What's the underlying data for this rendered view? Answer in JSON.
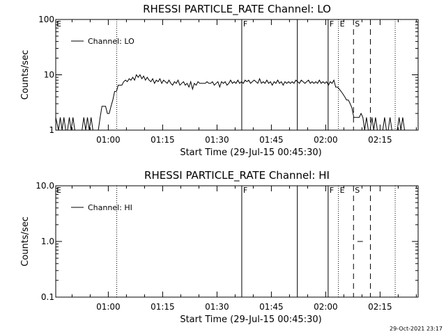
{
  "figure": {
    "timestamp": "29-Oct-2021 23:17"
  },
  "chart_data": [
    {
      "type": "line",
      "title": "RHESSI PARTICLE_RATE Channel: LO",
      "xlabel": "Start Time (29-Jul-15 00:45:30)",
      "ylabel": "Counts/sec",
      "x_unit": "minutes",
      "xlim": [
        "00:45:30",
        "02:25:30"
      ],
      "y_scale": "log",
      "ylim": [
        1,
        100
      ],
      "y_ticks": [
        {
          "value": 1,
          "label": "1"
        },
        {
          "value": 10,
          "label": "10"
        },
        {
          "value": 100,
          "label": "100"
        }
      ],
      "x_ticks": [
        {
          "time": "01:00",
          "label": "01:00"
        },
        {
          "time": "01:15",
          "label": "01:15"
        },
        {
          "time": "01:30",
          "label": "01:30"
        },
        {
          "time": "01:45",
          "label": "01:45"
        },
        {
          "time": "02:00",
          "label": "02:00"
        },
        {
          "time": "02:15",
          "label": "02:15"
        }
      ],
      "grid": false,
      "legend": {
        "position": "top-left",
        "entries": [
          "Channel: LO"
        ]
      },
      "series": [
        {
          "name": "Channel: LO",
          "points": [
            [
              "00:45:30",
              1.7
            ],
            [
              "00:46:15",
              1
            ],
            [
              "00:46:45",
              1.7
            ],
            [
              "00:47:15",
              1
            ],
            [
              "00:47:45",
              1.7
            ],
            [
              "00:48:15",
              1
            ],
            [
              "00:48:45",
              1
            ],
            [
              "00:49:15",
              1.7
            ],
            [
              "00:49:45",
              1
            ],
            [
              "00:50:15",
              1.7
            ],
            [
              "00:50:45",
              1
            ],
            [
              "00:51:15",
              1
            ],
            [
              "00:51:45",
              1
            ],
            [
              "00:52:15",
              1
            ],
            [
              "00:52:45",
              1
            ],
            [
              "00:53:15",
              1.7
            ],
            [
              "00:53:45",
              1
            ],
            [
              "00:54:15",
              1.7
            ],
            [
              "00:54:45",
              1
            ],
            [
              "00:55:15",
              1.7
            ],
            [
              "00:55:45",
              1
            ],
            [
              "00:56:15",
              1
            ],
            [
              "00:56:45",
              1
            ],
            [
              "00:57:15",
              1
            ],
            [
              "00:57:45",
              1.7
            ],
            [
              "00:58:15",
              2.7
            ],
            [
              "00:58:45",
              2.7
            ],
            [
              "00:59:15",
              2.7
            ],
            [
              "00:59:45",
              2
            ],
            [
              "01:00:15",
              2
            ],
            [
              "01:00:45",
              2.7
            ],
            [
              "01:01:15",
              3.5
            ],
            [
              "01:01:45",
              5
            ],
            [
              "01:02:15",
              5
            ],
            [
              "01:02:45",
              6.5
            ],
            [
              "01:03:15",
              6.5
            ],
            [
              "01:03:45",
              6.5
            ],
            [
              "01:04:15",
              7.5
            ],
            [
              "01:04:45",
              8
            ],
            [
              "01:05:15",
              7.5
            ],
            [
              "01:05:45",
              8.5
            ],
            [
              "01:06:15",
              8
            ],
            [
              "01:06:45",
              9
            ],
            [
              "01:07:15",
              8
            ],
            [
              "01:07:45",
              10
            ],
            [
              "01:08:15",
              9
            ],
            [
              "01:08:45",
              10
            ],
            [
              "01:09:15",
              8.5
            ],
            [
              "01:09:45",
              9.5
            ],
            [
              "01:10:15",
              8
            ],
            [
              "01:10:45",
              9
            ],
            [
              "01:11:15",
              8
            ],
            [
              "01:11:45",
              7.5
            ],
            [
              "01:12:15",
              8.5
            ],
            [
              "01:12:45",
              7
            ],
            [
              "01:13:15",
              8
            ],
            [
              "01:13:45",
              7.5
            ],
            [
              "01:14:15",
              8.5
            ],
            [
              "01:14:45",
              7
            ],
            [
              "01:15:15",
              8
            ],
            [
              "01:15:45",
              7.5
            ],
            [
              "01:16:15",
              7
            ],
            [
              "01:16:45",
              8
            ],
            [
              "01:17:15",
              7
            ],
            [
              "01:17:45",
              6.5
            ],
            [
              "01:18:15",
              7.5
            ],
            [
              "01:18:45",
              7
            ],
            [
              "01:19:15",
              8
            ],
            [
              "01:19:45",
              6.5
            ],
            [
              "01:20:15",
              7
            ],
            [
              "01:20:45",
              7.5
            ],
            [
              "01:21:15",
              6.5
            ],
            [
              "01:21:45",
              7
            ],
            [
              "01:22:15",
              6
            ],
            [
              "01:22:45",
              7.5
            ],
            [
              "01:23:15",
              5.5
            ],
            [
              "01:23:45",
              7
            ],
            [
              "01:24:15",
              6.5
            ],
            [
              "01:24:45",
              7.5
            ],
            [
              "01:25:15",
              7
            ],
            [
              "01:25:45",
              7
            ],
            [
              "01:26:15",
              7
            ],
            [
              "01:26:45",
              7
            ],
            [
              "01:27:15",
              7.5
            ],
            [
              "01:27:45",
              7
            ],
            [
              "01:28:15",
              7
            ],
            [
              "01:28:45",
              7.5
            ],
            [
              "01:29:15",
              6.5
            ],
            [
              "01:29:45",
              7
            ],
            [
              "01:30:15",
              7.5
            ],
            [
              "01:30:45",
              6
            ],
            [
              "01:31:15",
              7.5
            ],
            [
              "01:31:45",
              7
            ],
            [
              "01:32:15",
              7.5
            ],
            [
              "01:32:45",
              6.5
            ],
            [
              "01:33:15",
              7
            ],
            [
              "01:33:45",
              8
            ],
            [
              "01:34:15",
              7
            ],
            [
              "01:34:45",
              7.5
            ],
            [
              "01:35:15",
              7
            ],
            [
              "01:35:45",
              8
            ],
            [
              "01:36:15",
              7
            ],
            [
              "01:36:45",
              7.5
            ],
            [
              "01:37:15",
              7
            ],
            [
              "01:37:45",
              8
            ],
            [
              "01:38:15",
              7.5
            ],
            [
              "01:38:45",
              8
            ],
            [
              "01:39:15",
              7
            ],
            [
              "01:39:45",
              7.5
            ],
            [
              "01:40:15",
              8
            ],
            [
              "01:40:45",
              7.5
            ],
            [
              "01:41:15",
              7
            ],
            [
              "01:41:45",
              8.5
            ],
            [
              "01:42:15",
              7
            ],
            [
              "01:42:45",
              7.5
            ],
            [
              "01:43:15",
              7
            ],
            [
              "01:43:45",
              8
            ],
            [
              "01:44:15",
              7
            ],
            [
              "01:44:45",
              7.5
            ],
            [
              "01:45:15",
              6.5
            ],
            [
              "01:45:45",
              7.5
            ],
            [
              "01:46:15",
              7
            ],
            [
              "01:46:45",
              8
            ],
            [
              "01:47:15",
              7
            ],
            [
              "01:47:45",
              7.5
            ],
            [
              "01:48:15",
              6.5
            ],
            [
              "01:48:45",
              7.5
            ],
            [
              "01:49:15",
              7
            ],
            [
              "01:49:45",
              7.5
            ],
            [
              "01:50:15",
              7
            ],
            [
              "01:50:45",
              7.5
            ],
            [
              "01:51:15",
              7
            ],
            [
              "01:51:45",
              8
            ],
            [
              "01:52:15",
              7.5
            ],
            [
              "01:52:45",
              7
            ],
            [
              "01:53:15",
              8
            ],
            [
              "01:53:45",
              7.5
            ],
            [
              "01:54:15",
              7
            ],
            [
              "01:54:45",
              7.5
            ],
            [
              "01:55:15",
              8
            ],
            [
              "01:55:45",
              7
            ],
            [
              "01:56:15",
              7.5
            ],
            [
              "01:56:45",
              7
            ],
            [
              "01:57:15",
              7.5
            ],
            [
              "01:57:45",
              7
            ],
            [
              "01:58:15",
              8
            ],
            [
              "01:58:45",
              7
            ],
            [
              "01:59:15",
              7.5
            ],
            [
              "01:59:45",
              7
            ],
            [
              "02:00:15",
              7.5
            ],
            [
              "02:00:45",
              6.5
            ],
            [
              "02:01:15",
              7.5
            ],
            [
              "02:01:45",
              7
            ],
            [
              "02:02:15",
              8
            ],
            [
              "02:02:45",
              6
            ],
            [
              "02:03:15",
              6
            ],
            [
              "02:03:45",
              5.5
            ],
            [
              "02:04:15",
              5
            ],
            [
              "02:04:45",
              4.5
            ],
            [
              "02:05:15",
              4
            ],
            [
              "02:05:45",
              3.5
            ],
            [
              "02:06:15",
              3.5
            ],
            [
              "02:06:45",
              3
            ],
            [
              "02:07:15",
              2.5
            ],
            [
              "02:07:45",
              1.7
            ],
            [
              "02:08:15",
              1.7
            ],
            [
              "02:08:45",
              1.7
            ],
            [
              "02:09:15",
              1.7
            ],
            [
              "02:09:45",
              2
            ],
            [
              "02:10:15",
              1.7
            ],
            [
              "02:10:45",
              1
            ],
            [
              "02:11:15",
              1.7
            ],
            [
              "02:11:45",
              1
            ],
            [
              "02:12:15",
              1
            ],
            [
              "02:12:45",
              1.7
            ],
            [
              "02:13:15",
              1
            ],
            [
              "02:13:45",
              1.7
            ],
            [
              "02:14:15",
              1
            ],
            [
              "02:14:45",
              1
            ],
            [
              "02:15:15",
              1
            ],
            [
              "02:15:45",
              1
            ],
            [
              "02:16:15",
              1.7
            ],
            [
              "02:16:45",
              1
            ],
            [
              "02:17:15",
              1
            ],
            [
              "02:17:45",
              1.7
            ],
            [
              "02:18:15",
              1
            ],
            [
              "02:18:45",
              1
            ],
            [
              "02:19:15",
              1
            ],
            [
              "02:19:45",
              1
            ],
            [
              "02:20:15",
              1.7
            ],
            [
              "02:20:45",
              1
            ],
            [
              "02:21:15",
              1.7
            ],
            [
              "02:21:45",
              1
            ]
          ]
        }
      ],
      "event_lines": [
        {
          "time": "01:02:20",
          "style": "dotted",
          "label": ""
        },
        {
          "time": "01:36:50",
          "style": "solid",
          "label": "F"
        },
        {
          "time": "01:52:10",
          "style": "solid",
          "label": ""
        },
        {
          "time": "02:00:40",
          "style": "solid",
          "label": "F"
        },
        {
          "time": "02:03:30",
          "style": "dotted",
          "label": "E"
        },
        {
          "time": "02:07:40",
          "style": "dashed",
          "label": "S"
        },
        {
          "time": "02:12:20",
          "style": "dashed",
          "label": ""
        },
        {
          "time": "02:19:10",
          "style": "dotted",
          "label": ""
        }
      ],
      "corner_label": "E"
    },
    {
      "type": "line",
      "title": "RHESSI PARTICLE_RATE Channel: HI",
      "xlabel": "Start Time (29-Jul-15 00:45:30)",
      "ylabel": "Counts/sec",
      "x_unit": "minutes",
      "xlim": [
        "00:45:30",
        "02:25:30"
      ],
      "y_scale": "log",
      "ylim": [
        0.1,
        10
      ],
      "y_ticks": [
        {
          "value": 0.1,
          "label": "0.1"
        },
        {
          "value": 1,
          "label": "1.0"
        },
        {
          "value": 10,
          "label": "10.0"
        }
      ],
      "x_ticks": [
        {
          "time": "01:00",
          "label": "01:00"
        },
        {
          "time": "01:15",
          "label": "01:15"
        },
        {
          "time": "01:30",
          "label": "01:30"
        },
        {
          "time": "01:45",
          "label": "01:45"
        },
        {
          "time": "02:00",
          "label": "02:00"
        },
        {
          "time": "02:15",
          "label": "02:15"
        }
      ],
      "grid": false,
      "legend": {
        "position": "top-left",
        "entries": [
          "Channel: HI"
        ]
      },
      "series": [
        {
          "name": "Channel: HI",
          "points": [
            [
              "02:08:45",
              1.0
            ],
            [
              "02:10:15",
              1.0
            ]
          ]
        }
      ],
      "event_lines": [
        {
          "time": "01:02:20",
          "style": "dotted",
          "label": ""
        },
        {
          "time": "01:36:50",
          "style": "solid",
          "label": "F"
        },
        {
          "time": "01:52:10",
          "style": "solid",
          "label": ""
        },
        {
          "time": "02:00:40",
          "style": "solid",
          "label": "F"
        },
        {
          "time": "02:03:30",
          "style": "dotted",
          "label": "E"
        },
        {
          "time": "02:07:40",
          "style": "dashed",
          "label": "S"
        },
        {
          "time": "02:12:20",
          "style": "dashed",
          "label": ""
        },
        {
          "time": "02:19:10",
          "style": "dotted",
          "label": ""
        }
      ],
      "corner_label": "E"
    }
  ]
}
